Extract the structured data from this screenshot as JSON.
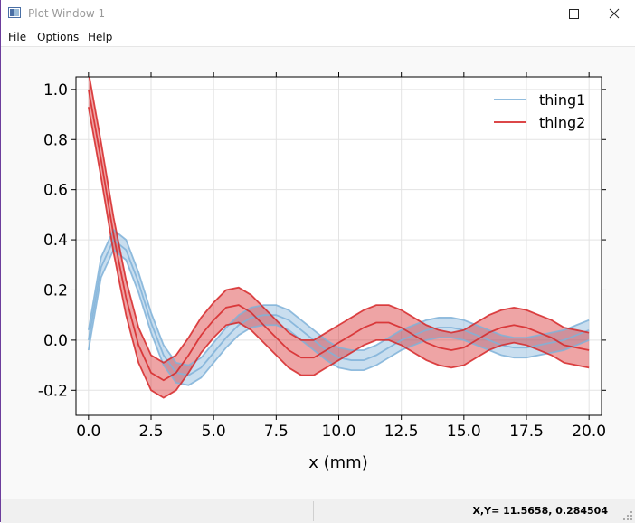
{
  "window": {
    "title": "Plot Window 1",
    "icon": "plot-window-icon",
    "controls": [
      "minimize-icon",
      "maximize-icon",
      "close-icon"
    ]
  },
  "menu": {
    "file": "File",
    "options": "Options",
    "help": "Help"
  },
  "status": {
    "coords": "X,Y= 11.5658, 0.284504"
  },
  "chart_data": {
    "type": "line",
    "title": "",
    "xlabel": "x (mm)",
    "ylabel": "",
    "xlim": [
      -0.5,
      20.5
    ],
    "ylim": [
      -0.3,
      1.05
    ],
    "xticks": [
      0.0,
      2.5,
      5.0,
      7.5,
      10.0,
      12.5,
      15.0,
      17.5,
      20.0
    ],
    "xtick_labels": [
      "0.0",
      "2.5",
      "5.0",
      "7.5",
      "10.0",
      "12.5",
      "15.0",
      "17.5",
      "20.0"
    ],
    "yticks": [
      -0.2,
      0.0,
      0.2,
      0.4,
      0.6,
      0.8,
      1.0
    ],
    "ytick_labels": [
      "-0.2",
      "0.0",
      "0.2",
      "0.4",
      "0.6",
      "0.8",
      "1.0"
    ],
    "grid": true,
    "legend_position": "top-right",
    "x": [
      0,
      0.5,
      1,
      1.5,
      2,
      2.5,
      3,
      3.5,
      4,
      4.5,
      5,
      5.5,
      6,
      6.5,
      7,
      7.5,
      8,
      8.5,
      9,
      9.5,
      10,
      10.5,
      11,
      11.5,
      12,
      12.5,
      13,
      13.5,
      14,
      14.5,
      15,
      15.5,
      16,
      16.5,
      17,
      17.5,
      18,
      18.5,
      19,
      19.5,
      20
    ],
    "series": [
      {
        "name": "thing1",
        "color": "#7fb1d8",
        "values": [
          0.0,
          0.29,
          0.4,
          0.36,
          0.23,
          0.07,
          -0.06,
          -0.13,
          -0.14,
          -0.11,
          -0.05,
          0.01,
          0.06,
          0.09,
          0.1,
          0.1,
          0.08,
          0.04,
          0.0,
          -0.04,
          -0.07,
          -0.08,
          -0.08,
          -0.06,
          -0.03,
          0.0,
          0.02,
          0.04,
          0.05,
          0.05,
          0.04,
          0.02,
          0.0,
          -0.02,
          -0.03,
          -0.03,
          -0.02,
          -0.01,
          0.0,
          0.02,
          0.04
        ],
        "band_half_width": 0.04
      },
      {
        "name": "thing2",
        "color": "#d62728",
        "values": [
          1.0,
          0.72,
          0.42,
          0.17,
          -0.02,
          -0.13,
          -0.16,
          -0.13,
          -0.06,
          0.02,
          0.08,
          0.13,
          0.14,
          0.11,
          0.06,
          0.01,
          -0.04,
          -0.07,
          -0.07,
          -0.04,
          -0.01,
          0.02,
          0.05,
          0.07,
          0.07,
          0.05,
          0.02,
          -0.01,
          -0.03,
          -0.04,
          -0.03,
          0.0,
          0.03,
          0.05,
          0.06,
          0.05,
          0.03,
          0.01,
          -0.02,
          -0.03,
          -0.04
        ],
        "band_half_width": 0.07
      }
    ]
  }
}
